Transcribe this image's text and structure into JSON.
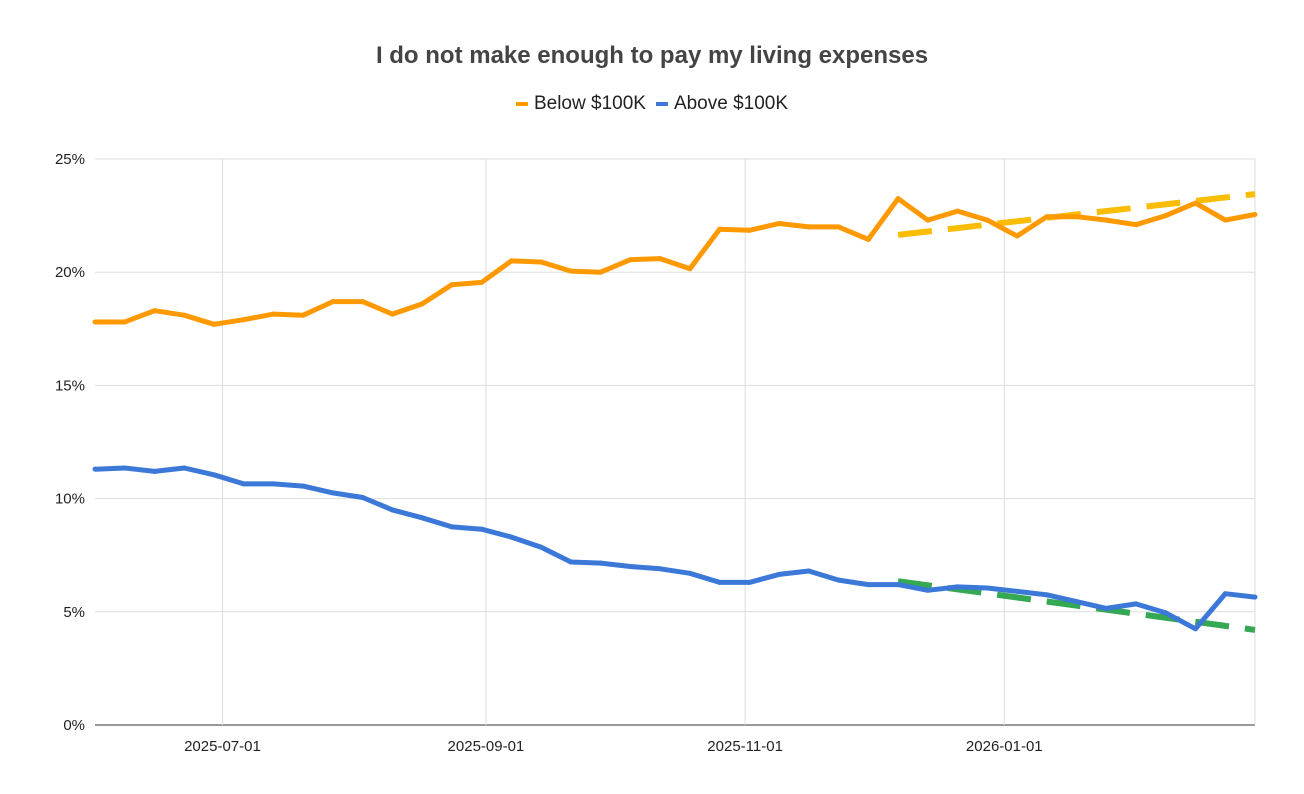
{
  "chart_data": {
    "type": "line",
    "title": "I do not make enough to pay my living expenses",
    "xlabel": "",
    "ylabel": "",
    "legend_position": "top",
    "grid": true,
    "xlim": [
      "2025-06-01",
      "2026-03-01"
    ],
    "ylim": [
      0,
      25
    ],
    "x_ticks": [
      "2025-07-01",
      "2025-09-01",
      "2025-11-01",
      "2026-01-01"
    ],
    "y_ticks": [
      "0%",
      "5%",
      "10%",
      "15%",
      "20%",
      "25%"
    ],
    "x": [
      "2025-06-01",
      "2025-06-08",
      "2025-06-15",
      "2025-06-22",
      "2025-06-29",
      "2025-07-06",
      "2025-07-13",
      "2025-07-20",
      "2025-07-27",
      "2025-08-03",
      "2025-08-10",
      "2025-08-17",
      "2025-08-24",
      "2025-08-31",
      "2025-09-07",
      "2025-09-14",
      "2025-09-21",
      "2025-09-28",
      "2025-10-05",
      "2025-10-12",
      "2025-10-19",
      "2025-10-26",
      "2025-11-02",
      "2025-11-09",
      "2025-11-16",
      "2025-11-23",
      "2025-11-30",
      "2025-12-07",
      "2025-12-14",
      "2025-12-21",
      "2025-12-28",
      "2026-01-04",
      "2026-01-11",
      "2026-01-18",
      "2026-01-25",
      "2026-02-01",
      "2026-02-08",
      "2026-02-15",
      "2026-02-22",
      "2026-03-01"
    ],
    "series": [
      {
        "name": "Below $100K",
        "color": "#FF9900",
        "values": [
          17.8,
          17.8,
          18.3,
          18.1,
          17.7,
          17.9,
          18.15,
          18.1,
          18.7,
          18.7,
          18.15,
          18.6,
          19.45,
          19.55,
          20.5,
          20.45,
          20.05,
          20.0,
          20.55,
          20.6,
          20.15,
          21.9,
          21.85,
          22.15,
          22.0,
          22.0,
          21.45,
          23.25,
          22.3,
          22.7,
          22.3,
          21.6,
          22.45,
          22.45,
          22.3,
          22.1,
          22.5,
          23.05,
          22.3,
          22.55
        ],
        "trendline": {
          "color": "#FBBC04",
          "x": [
            "2025-12-07",
            "2026-03-01"
          ],
          "values": [
            21.65,
            23.45
          ]
        }
      },
      {
        "name": "Above $100K",
        "color": "#3C78D8",
        "values": [
          11.3,
          11.35,
          11.2,
          11.35,
          11.05,
          10.65,
          10.65,
          10.55,
          10.25,
          10.05,
          9.5,
          9.15,
          8.75,
          8.65,
          8.3,
          7.85,
          7.2,
          7.15,
          7.0,
          6.9,
          6.7,
          6.3,
          6.3,
          6.65,
          6.8,
          6.4,
          6.2,
          6.2,
          5.95,
          6.1,
          6.05,
          5.9,
          5.75,
          5.45,
          5.15,
          5.35,
          4.95,
          4.25,
          5.8,
          5.65
        ],
        "trendline": {
          "color": "#34A853",
          "x": [
            "2025-12-07",
            "2026-03-01"
          ],
          "values": [
            6.35,
            4.2
          ]
        }
      }
    ]
  }
}
